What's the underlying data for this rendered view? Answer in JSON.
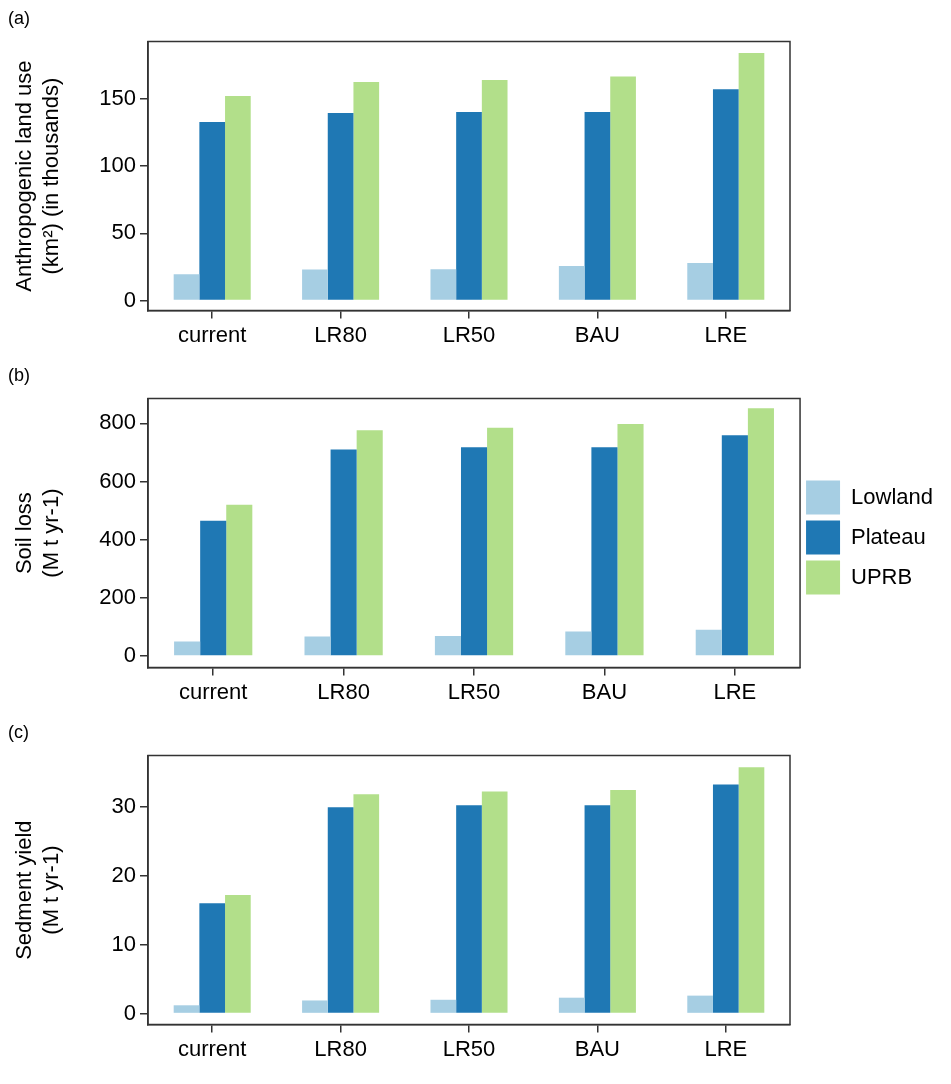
{
  "chart_data": [
    {
      "type": "bar",
      "title": "(a)",
      "ylabel": "Anthropogenic land use\n(km²) (in thousands)",
      "categories": [
        "current",
        "LR80",
        "LR50",
        "BAU",
        "LRE"
      ],
      "series": [
        {
          "color": "#a6cee3",
          "values": [
            19.5,
            23,
            23.3,
            25.6,
            27.8
          ]
        },
        {
          "color": "#1f78b4",
          "values": [
            132.7,
            139.5,
            140.2,
            140.2,
            157
          ]
        },
        {
          "color": "#b2df8a",
          "values": [
            152,
            162.4,
            164,
            166.5,
            184
          ]
        }
      ],
      "ylim": [
        -7.5,
        192.5
      ],
      "yticks": [
        0,
        50,
        100,
        150
      ],
      "grid": false,
      "legend": false
    },
    {
      "type": "bar",
      "title": "(b)",
      "ylabel": "Soil loss\n(M t yr-1)",
      "categories": [
        "current",
        "LR80",
        "LR50",
        "BAU",
        "LRE"
      ],
      "series": [
        {
          "name": "Lowland",
          "color": "#a6cee3",
          "values": [
            50,
            67,
            69,
            84,
            90
          ]
        },
        {
          "name": "Plateau",
          "color": "#1f78b4",
          "values": [
            465,
            710,
            718,
            718,
            759
          ]
        },
        {
          "name": "UPRB",
          "color": "#b2df8a",
          "values": [
            520,
            776,
            785,
            798,
            852
          ]
        }
      ],
      "ylim": [
        -40,
        885
      ],
      "yticks": [
        0,
        200,
        400,
        600,
        800
      ],
      "grid": false,
      "legend": "right"
    },
    {
      "type": "bar",
      "title": "(c)",
      "ylabel": "Sedment yield\n(M t yr-1)",
      "categories": [
        "current",
        "LR80",
        "LR50",
        "BAU",
        "LRE"
      ],
      "series": [
        {
          "color": "#a6cee3",
          "values": [
            1.2,
            1.9,
            2.0,
            2.3,
            2.6
          ]
        },
        {
          "color": "#1f78b4",
          "values": [
            16.0,
            29.9,
            30.2,
            30.2,
            33.2
          ]
        },
        {
          "color": "#b2df8a",
          "values": [
            17.2,
            31.8,
            32.2,
            32.4,
            35.7
          ]
        }
      ],
      "ylim": [
        -1.6,
        37.4
      ],
      "yticks": [
        0,
        10,
        20,
        30
      ],
      "grid": false,
      "legend": false
    }
  ]
}
